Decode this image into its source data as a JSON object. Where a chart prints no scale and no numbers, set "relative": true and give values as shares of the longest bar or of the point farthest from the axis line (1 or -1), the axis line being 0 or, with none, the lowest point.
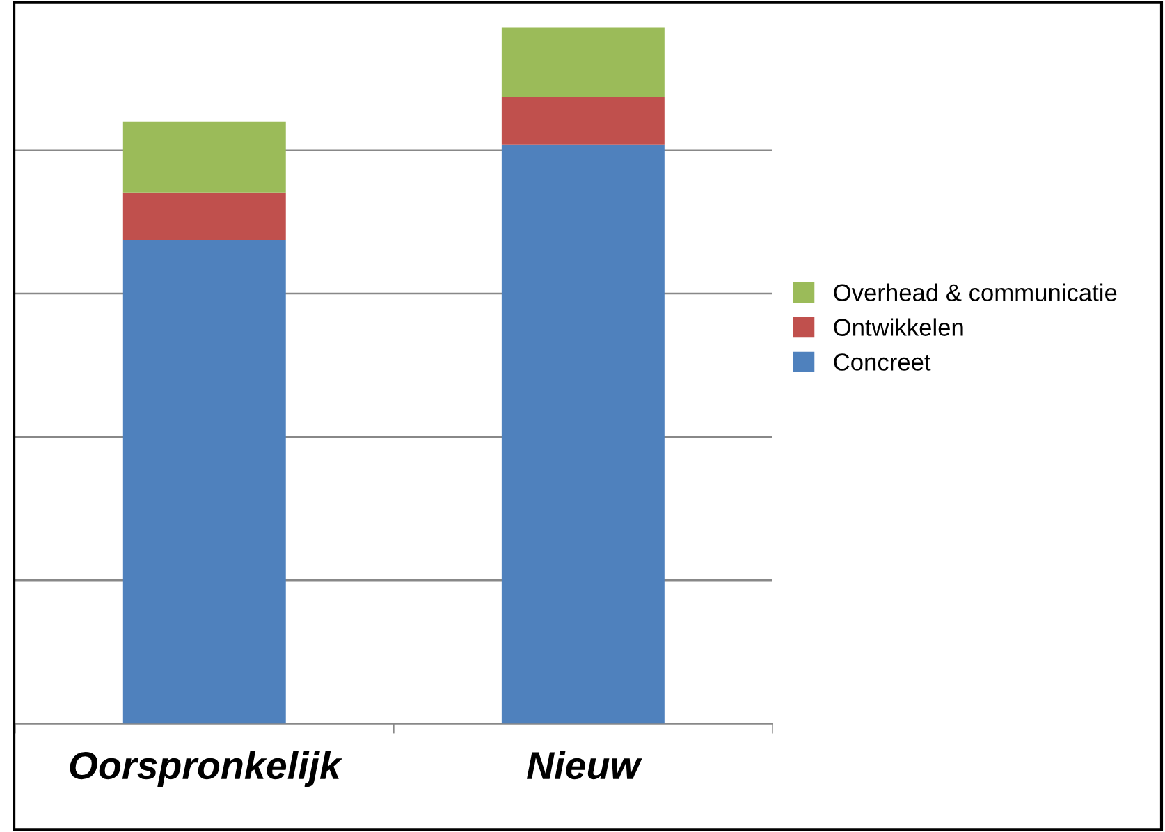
{
  "chart_data": {
    "type": "bar",
    "stacked": true,
    "relative": true,
    "grid": "y",
    "legend": "right",
    "categories": [
      "Oorspronkelijk",
      "Nieuw"
    ],
    "series": [
      {
        "name": "Concreet",
        "color": "#4f81bd",
        "values": [
          0.695,
          0.832
        ]
      },
      {
        "name": "Ontwikkelen",
        "color": "#c0504d",
        "values": [
          0.068,
          0.068
        ]
      },
      {
        "name": "Overhead & communicatie",
        "color": "#9bbb59",
        "values": [
          0.102,
          0.1
        ]
      }
    ]
  }
}
